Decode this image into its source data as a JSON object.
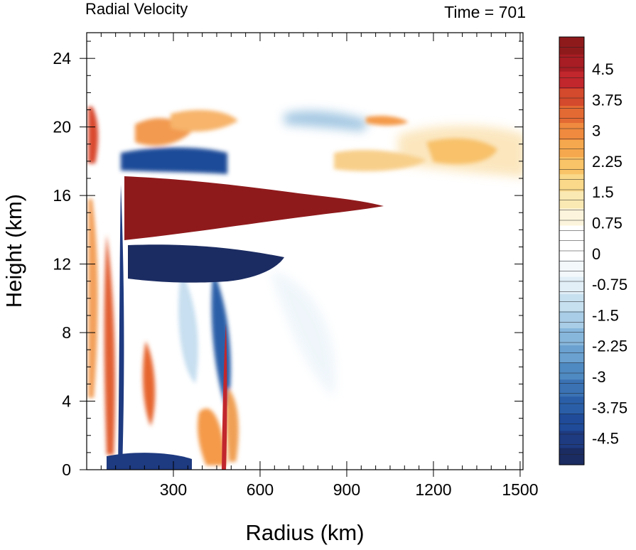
{
  "chart_data": {
    "type": "heatmap",
    "title_left": "Radial Velocity",
    "title_right": "Time = 701",
    "xlabel": "Radius (km)",
    "ylabel": "Height (km)",
    "xlim": [
      0,
      1510
    ],
    "ylim": [
      0,
      25.5
    ],
    "x_ticks": [
      300,
      600,
      900,
      1200,
      1500
    ],
    "y_ticks": [
      0,
      4,
      8,
      12,
      16,
      20,
      24
    ],
    "colorbar": {
      "levels": [
        -5.25,
        -5.0,
        -4.75,
        -4.5,
        -4.25,
        -4.0,
        -3.75,
        -3.5,
        -3.25,
        -3.0,
        -2.75,
        -2.5,
        -2.25,
        -2.0,
        -1.75,
        -1.5,
        -1.25,
        -1.0,
        -0.75,
        -0.5,
        -0.25,
        0,
        0.25,
        0.5,
        0.75,
        1.0,
        1.25,
        1.5,
        1.75,
        2.0,
        2.25,
        2.5,
        2.75,
        3.0,
        3.25,
        3.5,
        3.75,
        4.0,
        4.25,
        4.5,
        4.75,
        5.0,
        5.25
      ],
      "labels": [
        "4.5",
        "3.75",
        "3",
        "2.25",
        "1.5",
        "0.75",
        "0",
        "-0.75",
        "-1.5",
        "-2.25",
        "-3",
        "-3.75",
        "-4.5"
      ],
      "colors_low_to_high": [
        "#1b2c62",
        "#1e3a80",
        "#1f4b99",
        "#2a5fa8",
        "#3a72b4",
        "#4f8ac2",
        "#6aa1d0",
        "#88b7dc",
        "#a9cde6",
        "#c7e0ef",
        "#e2eff7",
        "#f3f8fb",
        "#ffffff",
        "#ffffff",
        "#fcf4dc",
        "#fbe9b3",
        "#fad98a",
        "#f9c367",
        "#f6a84e",
        "#f08a3e",
        "#e46a33",
        "#d44a2c",
        "#c1272d",
        "#a71d23",
        "#8f1a1c"
      ]
    },
    "features": [
      {
        "name": "upper-level outflow",
        "sign": "positive",
        "x_range_km": [
          130,
          1060
        ],
        "height_km": [
          13.2,
          17.0
        ],
        "peak": 5.0
      },
      {
        "name": "inflow below outflow",
        "sign": "negative",
        "x_range_km": [
          130,
          680
        ],
        "height_km": [
          11.0,
          13.3
        ],
        "peak": -5.0
      },
      {
        "name": "boundary layer inflow",
        "sign": "negative",
        "x_range_km": [
          70,
          470
        ],
        "height_km": [
          0,
          1.0
        ],
        "peak": -5.0
      },
      {
        "name": "low-level outflow band",
        "sign": "positive",
        "x_range_km": [
          320,
          480
        ],
        "height_km": [
          0,
          4.0
        ],
        "peak": 3.0
      },
      {
        "name": "upper-level inflow near 20 km",
        "sign": "negative",
        "x_range_km": [
          100,
          1000
        ],
        "height_km": [
          17.0,
          21.5
        ],
        "peak": -3.0
      },
      {
        "name": "upper-level weak outflow near 18 km",
        "sign": "positive",
        "x_range_km": [
          750,
          1500
        ],
        "height_km": [
          16.5,
          20.5
        ],
        "peak": 2.0
      }
    ]
  }
}
